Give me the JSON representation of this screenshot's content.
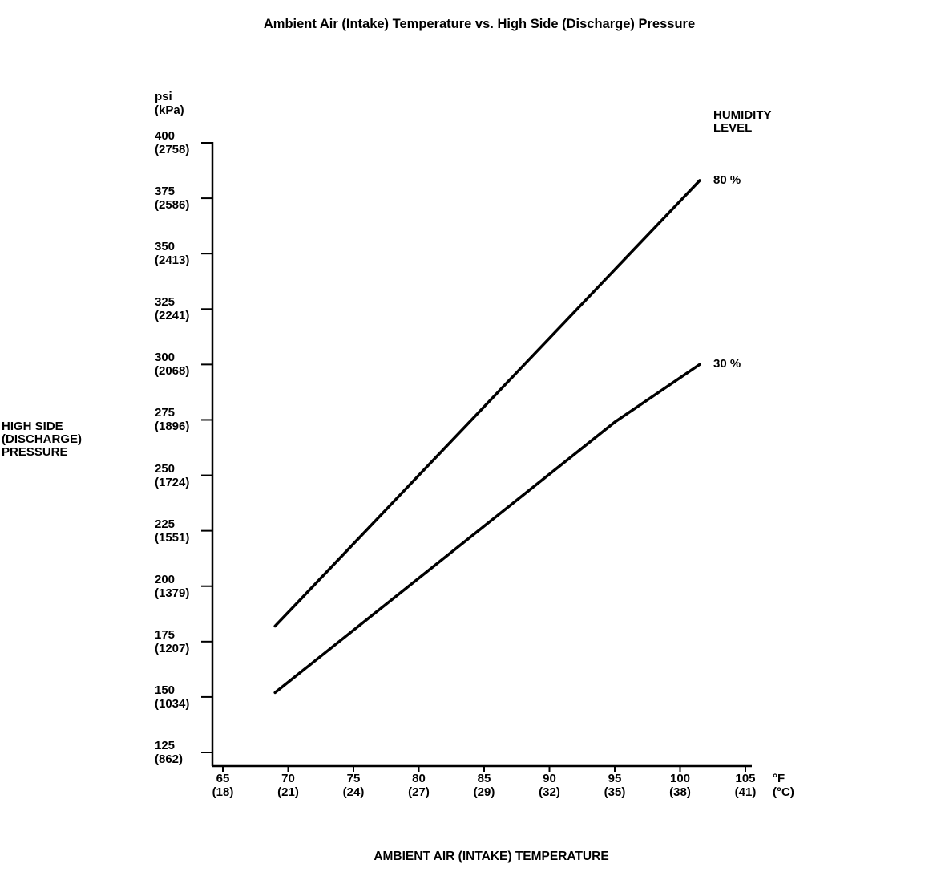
{
  "title": "Ambient Air (Intake) Temperature vs. High Side (Discharge) Pressure",
  "y_axis": {
    "unit_line1": "psi",
    "unit_line2": "(kPa)",
    "title_lines": [
      "HIGH SIDE",
      "(DISCHARGE)",
      "PRESSURE"
    ]
  },
  "x_axis": {
    "unit_line1": "°F",
    "unit_line2": "(°C)",
    "title": "AMBIENT AIR (INTAKE) TEMPERATURE"
  },
  "legend": {
    "title_line1": "HUMIDITY",
    "title_line2": "LEVEL"
  },
  "chart_data": {
    "type": "line",
    "title": "Ambient Air (Intake) Temperature vs. High Side (Discharge) Pressure",
    "xlabel": "AMBIENT AIR (INTAKE) TEMPERATURE",
    "ylabel": "HIGH SIDE (DISCHARGE) PRESSURE",
    "x_unit": "°F (°C)",
    "y_unit": "psi (kPa)",
    "xlim": [
      65,
      105
    ],
    "ylim": [
      125,
      400
    ],
    "grid": false,
    "legend_title": "HUMIDITY LEVEL",
    "legend_position": "top-right",
    "line_color": "#000000",
    "x_ticks": [
      {
        "f": "65",
        "c": "(18)"
      },
      {
        "f": "70",
        "c": "(21)"
      },
      {
        "f": "75",
        "c": "(24)"
      },
      {
        "f": "80",
        "c": "(27)"
      },
      {
        "f": "85",
        "c": "(29)"
      },
      {
        "f": "90",
        "c": "(32)"
      },
      {
        "f": "95",
        "c": "(35)"
      },
      {
        "f": "100",
        "c": "(38)"
      },
      {
        "f": "105",
        "c": "(41)"
      }
    ],
    "y_ticks": [
      {
        "psi": "400",
        "kpa": "(2758)"
      },
      {
        "psi": "375",
        "kpa": "(2586)"
      },
      {
        "psi": "350",
        "kpa": "(2413)"
      },
      {
        "psi": "325",
        "kpa": "(2241)"
      },
      {
        "psi": "300",
        "kpa": "(2068)"
      },
      {
        "psi": "275",
        "kpa": "(1896)"
      },
      {
        "psi": "250",
        "kpa": "(1724)"
      },
      {
        "psi": "225",
        "kpa": "(1551)"
      },
      {
        "psi": "200",
        "kpa": "(1379)"
      },
      {
        "psi": "175",
        "kpa": "(1207)"
      },
      {
        "psi": "150",
        "kpa": "(1034)"
      },
      {
        "psi": "125",
        "kpa": "(862)"
      }
    ],
    "series": [
      {
        "name": "80 %",
        "humidity_pct": 80,
        "points_f_psi": [
          [
            69,
            182
          ],
          [
            101.5,
            383
          ]
        ]
      },
      {
        "name": "30 %",
        "humidity_pct": 30,
        "points_f_psi": [
          [
            69,
            152
          ],
          [
            95,
            274
          ],
          [
            101.5,
            300
          ]
        ]
      }
    ]
  }
}
